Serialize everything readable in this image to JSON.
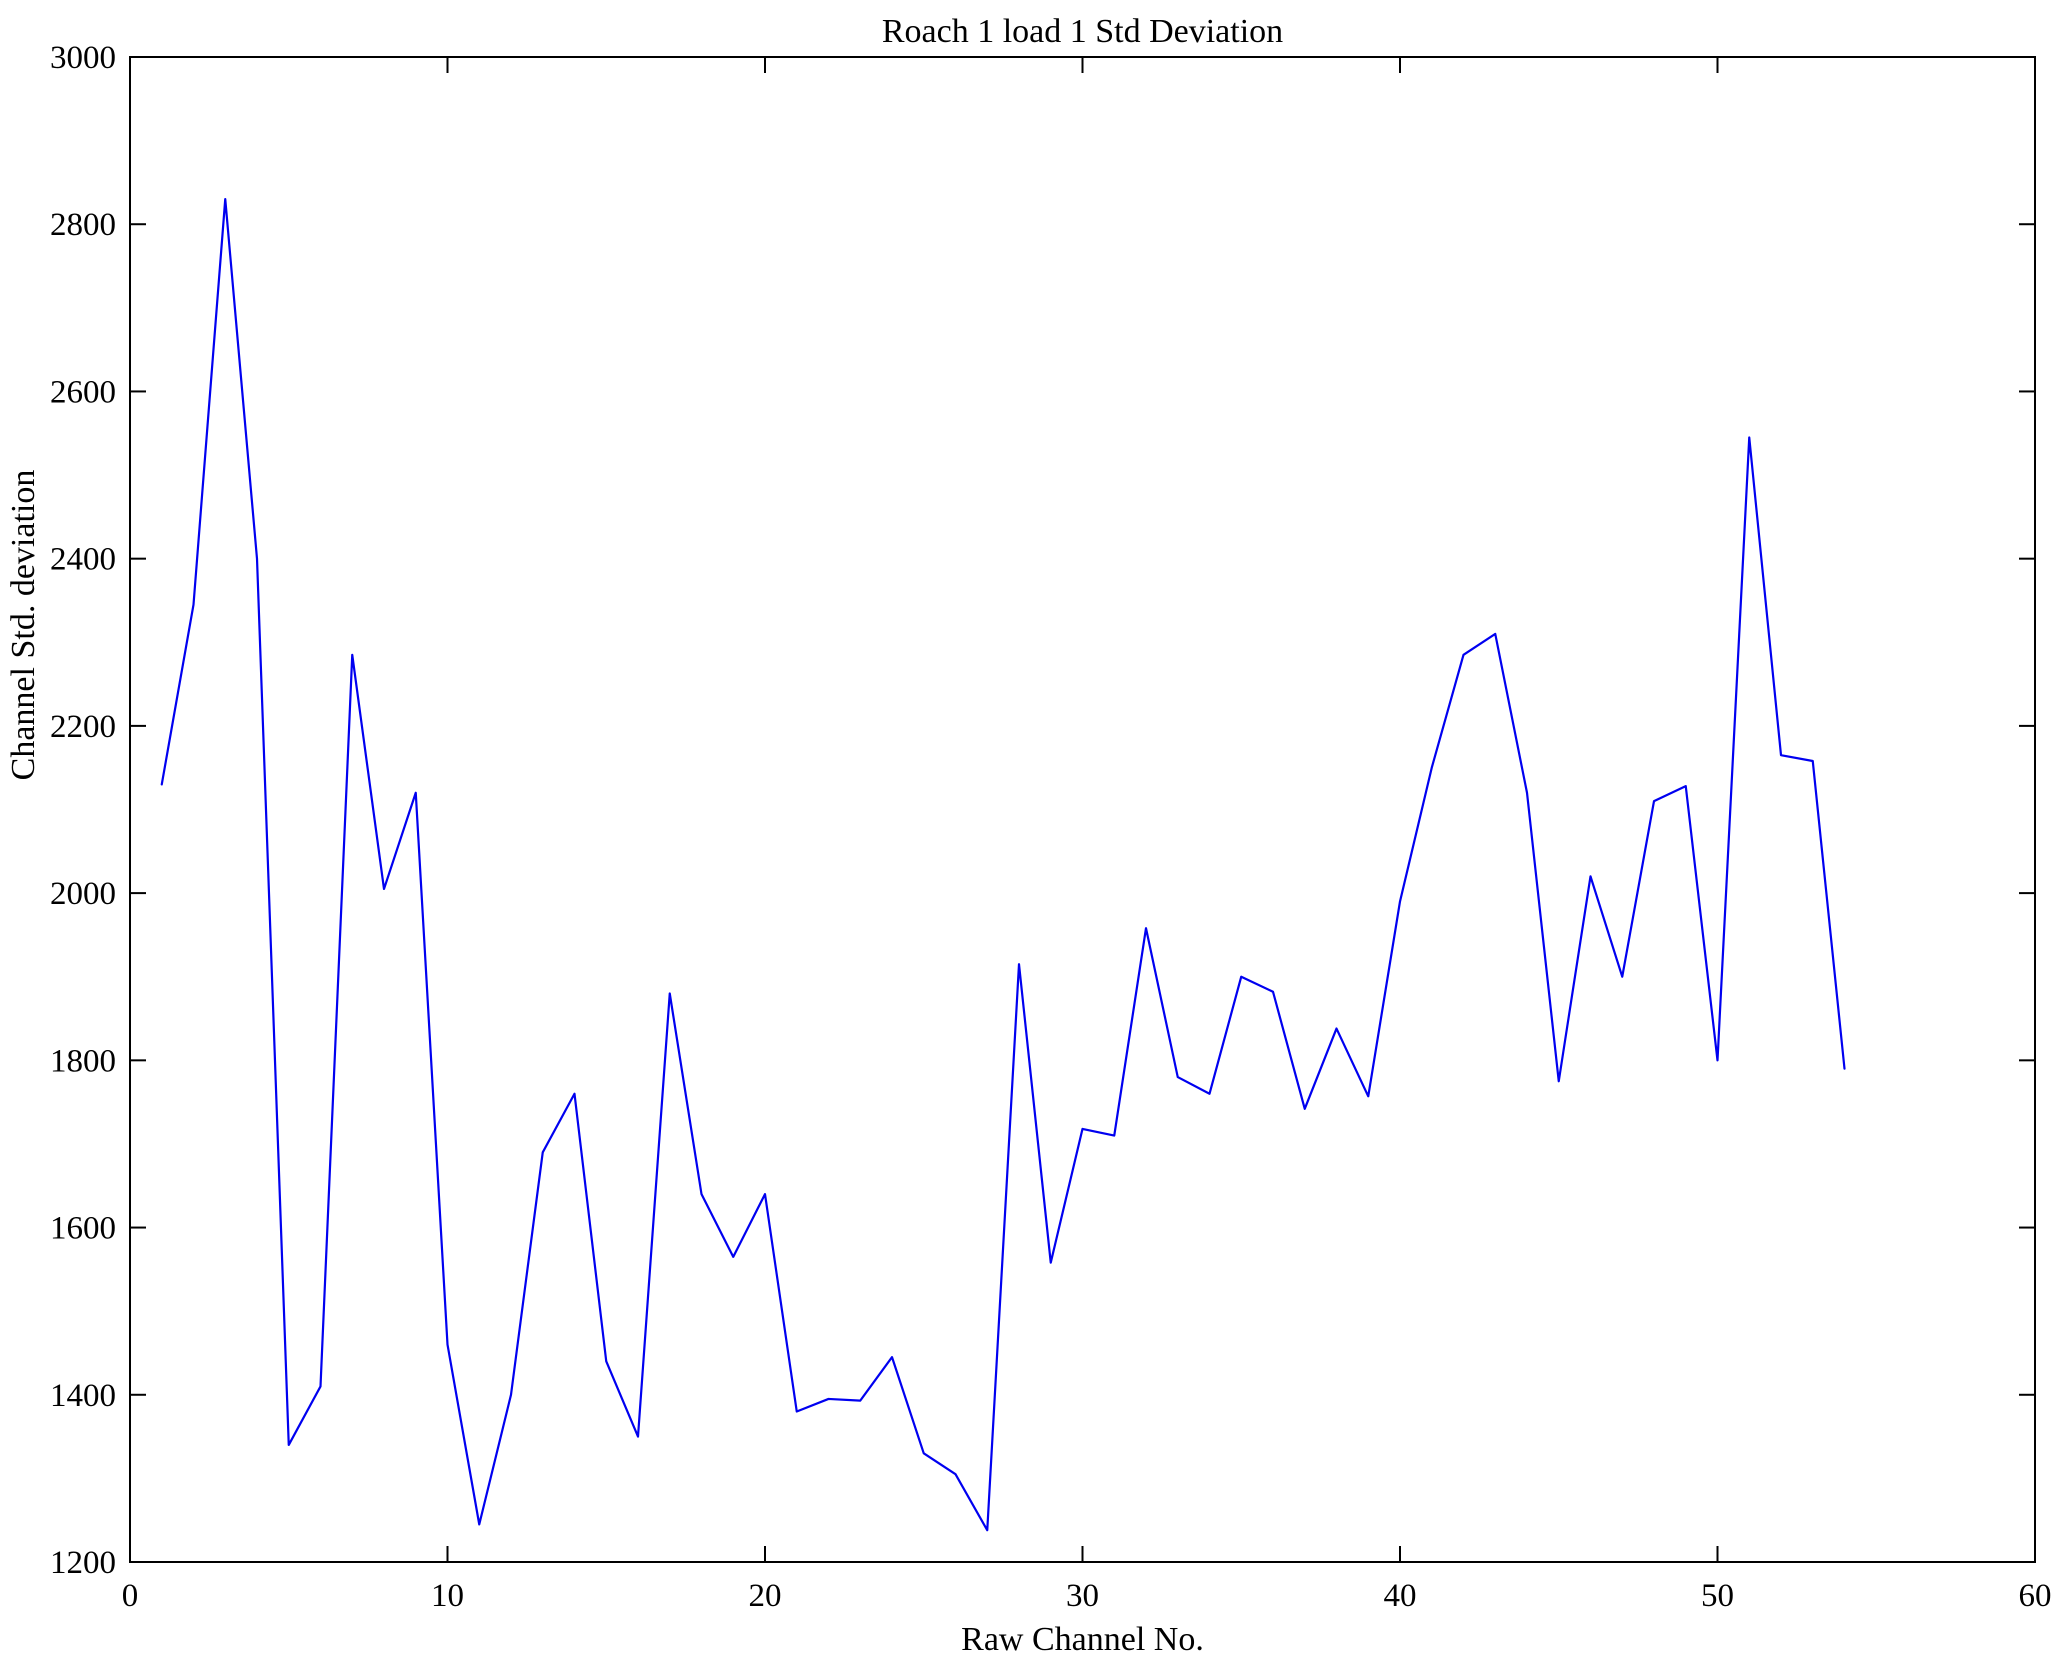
{
  "chart_data": {
    "type": "line",
    "title": "Roach 1 load 1 Std Deviation",
    "xlabel": "Raw Channel No.",
    "ylabel": "Channel Std. deviation",
    "xlim": [
      0,
      60
    ],
    "ylim": [
      1200,
      3000
    ],
    "xticks": [
      0,
      10,
      20,
      30,
      40,
      50,
      60
    ],
    "yticks": [
      1200,
      1400,
      1600,
      1800,
      2000,
      2200,
      2400,
      2600,
      2800,
      3000
    ],
    "grid": false,
    "legend": "none",
    "line_color": "#0000f0",
    "series": [
      {
        "name": "Channel Std deviation vs Raw Channel No.",
        "x": [
          1,
          2,
          3,
          4,
          5,
          6,
          7,
          8,
          9,
          10,
          11,
          12,
          13,
          14,
          15,
          16,
          17,
          18,
          19,
          20,
          21,
          22,
          23,
          24,
          25,
          26,
          27,
          28,
          29,
          30,
          31,
          32,
          33,
          34,
          35,
          36,
          37,
          38,
          39,
          40,
          41,
          42,
          43,
          44,
          45,
          46,
          47,
          48,
          49,
          50,
          51,
          52,
          53,
          54
        ],
        "y": [
          2130,
          2345,
          2830,
          2400,
          1340,
          1410,
          2285,
          2005,
          2120,
          1460,
          1245,
          1400,
          1690,
          1760,
          1440,
          1350,
          1880,
          1640,
          1565,
          1640,
          1380,
          1395,
          1393,
          1445,
          1330,
          1305,
          1238,
          1915,
          1558,
          1718,
          1710,
          1958,
          1780,
          1760,
          1900,
          1882,
          1742,
          1838,
          1757,
          1990,
          2150,
          2285,
          2310,
          2120,
          1775,
          2020,
          1900,
          2110,
          2128,
          1800,
          2545,
          2165,
          2158,
          1790
        ]
      }
    ]
  }
}
